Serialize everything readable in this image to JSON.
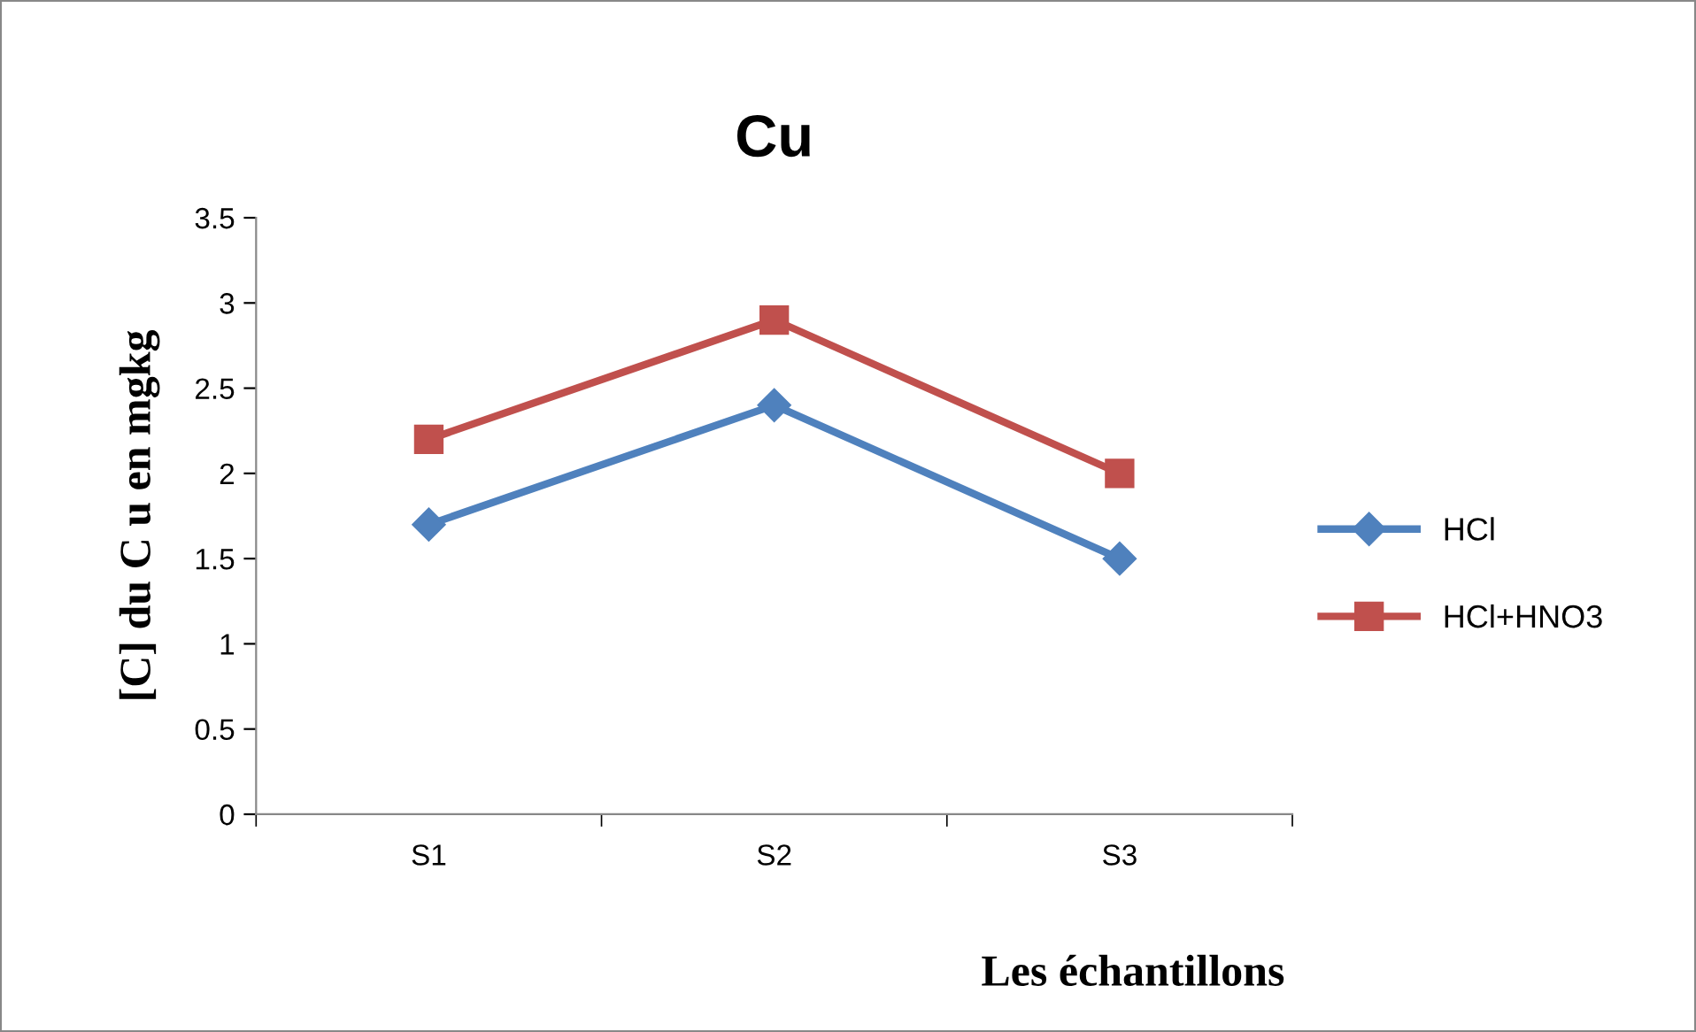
{
  "chart_data": {
    "type": "line",
    "title": "Cu",
    "xlabel": "Les échantillons",
    "ylabel": "[C] du C u en mgkg",
    "categories": [
      "S1",
      "S2",
      "S3"
    ],
    "series": [
      {
        "name": "HCl",
        "color": "#4f81bd",
        "values": [
          1.7,
          2.4,
          1.5
        ],
        "marker": "diamond"
      },
      {
        "name": "HCl+HNO3",
        "color": "#c0504d",
        "values": [
          2.2,
          2.9,
          2.0
        ],
        "marker": "square"
      }
    ],
    "ylim": [
      0,
      3.5
    ],
    "yticks": [
      {
        "value": 0,
        "label": "0"
      },
      0.5,
      {
        "value": 1,
        "label": "1"
      },
      1.5,
      {
        "value": 2,
        "label": "2"
      },
      2.5,
      {
        "value": 3,
        "label": "3"
      },
      3.5
    ],
    "grid": false,
    "legend": "right",
    "line_style": "solid"
  }
}
